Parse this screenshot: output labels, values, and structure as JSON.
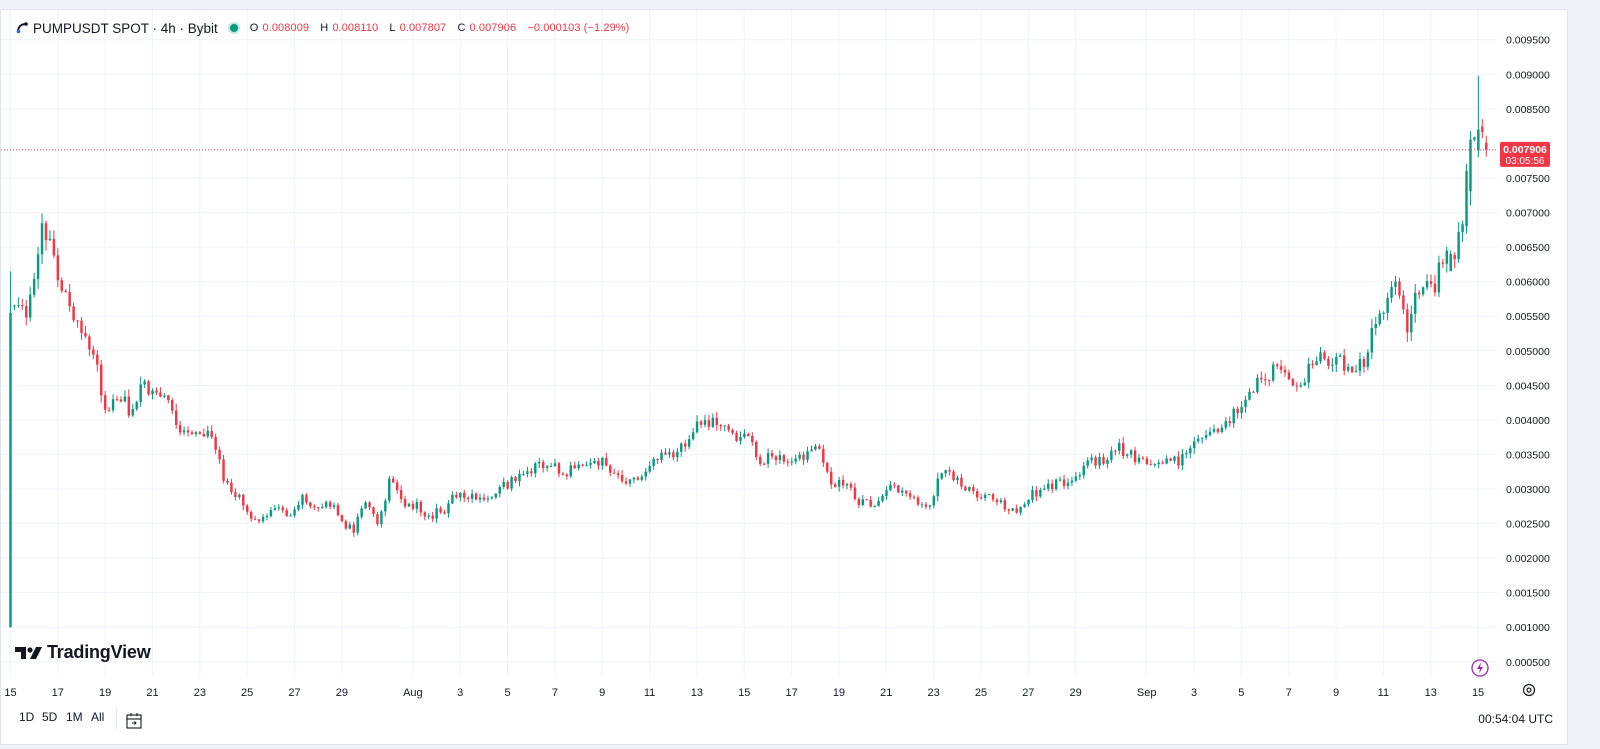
{
  "header": {
    "symbol_line": "PUMPUSDT SPOT · 4h · Bybit",
    "ohlc": {
      "o_label": "O",
      "o_value": "0.008009",
      "h_label": "H",
      "h_value": "0.008110",
      "l_label": "L",
      "l_value": "0.007807",
      "c_label": "C",
      "c_value": "0.007906",
      "change": "−0.000103 (−1.29%)"
    },
    "icons": [
      "exchange-logo-icon",
      "market-open-dot-icon"
    ]
  },
  "branding": {
    "wordmark": "TradingView",
    "icon": "tradingview-logo-icon"
  },
  "bottom_bar": {
    "ranges": [
      "1D",
      "5D",
      "1M",
      "All"
    ],
    "date_range_icon": "calendar-range-icon",
    "clock": "00:54:04 UTC"
  },
  "colors": {
    "up": "#089981",
    "down": "#f23645",
    "grid": "#f0f3fa",
    "text": "#131722",
    "price_line": "#f23645",
    "flash_icon": "#9c27b0"
  },
  "chart_data": {
    "type": "candlestick",
    "symbol": "PUMPUSDT",
    "interval": "4h",
    "exchange": "Bybit",
    "y_axis": {
      "side": "right",
      "ylim": [
        0.00028,
        0.00993
      ],
      "tick_labels": [
        "0.000500",
        "0.001000",
        "0.001500",
        "0.002000",
        "0.002500",
        "0.003000",
        "0.003500",
        "0.004000",
        "0.004500",
        "0.005000",
        "0.005500",
        "0.006000",
        "0.006500",
        "0.007000",
        "0.007500",
        "0.008500",
        "0.009000",
        "0.009500"
      ],
      "tick_values": [
        0.0005,
        0.001,
        0.0015,
        0.002,
        0.0025,
        0.003,
        0.0035,
        0.004,
        0.0045,
        0.005,
        0.0055,
        0.006,
        0.0065,
        0.007,
        0.0075,
        0.0085,
        0.009,
        0.0095
      ]
    },
    "x_axis": {
      "tick_labels": [
        "15",
        "17",
        "19",
        "21",
        "23",
        "25",
        "27",
        "29",
        "Aug",
        "3",
        "5",
        "7",
        "9",
        "11",
        "13",
        "15",
        "17",
        "19",
        "21",
        "23",
        "25",
        "27",
        "29",
        "Sep",
        "3",
        "5",
        "7",
        "9",
        "11",
        "13",
        "15"
      ],
      "tick_days": [
        0,
        2,
        4,
        6,
        8,
        10,
        12,
        14,
        17,
        19,
        21,
        23,
        25,
        27,
        29,
        31,
        33,
        35,
        37,
        39,
        41,
        43,
        45,
        48,
        50,
        52,
        54,
        56,
        58,
        60,
        62
      ],
      "bar_interval_days": 0.1667,
      "xlim_days": [
        -0.4,
        62.8
      ]
    },
    "grid": true,
    "price_line": {
      "value": 0.007906,
      "label": "0.007906",
      "countdown": "03:05:56"
    },
    "anchors": [
      {
        "day": 0.0,
        "price": 0.00555
      },
      {
        "day": 0.4,
        "price": 0.00575
      },
      {
        "day": 0.7,
        "price": 0.00545
      },
      {
        "day": 1.1,
        "price": 0.0064
      },
      {
        "day": 1.3,
        "price": 0.00685
      },
      {
        "day": 1.6,
        "price": 0.0066
      },
      {
        "day": 2.1,
        "price": 0.006
      },
      {
        "day": 2.6,
        "price": 0.0054
      },
      {
        "day": 3.2,
        "price": 0.0052
      },
      {
        "day": 3.7,
        "price": 0.0047
      },
      {
        "day": 4.0,
        "price": 0.0041
      },
      {
        "day": 4.5,
        "price": 0.0044
      },
      {
        "day": 5.1,
        "price": 0.0041
      },
      {
        "day": 5.6,
        "price": 0.0046
      },
      {
        "day": 6.1,
        "price": 0.0043
      },
      {
        "day": 6.6,
        "price": 0.0044
      },
      {
        "day": 7.1,
        "price": 0.0039
      },
      {
        "day": 7.6,
        "price": 0.0037
      },
      {
        "day": 8.2,
        "price": 0.0038
      },
      {
        "day": 8.6,
        "price": 0.0037
      },
      {
        "day": 9.0,
        "price": 0.0031
      },
      {
        "day": 9.6,
        "price": 0.0029
      },
      {
        "day": 10.2,
        "price": 0.0025
      },
      {
        "day": 10.8,
        "price": 0.0026
      },
      {
        "day": 11.4,
        "price": 0.0028
      },
      {
        "day": 11.8,
        "price": 0.0026
      },
      {
        "day": 12.3,
        "price": 0.0029
      },
      {
        "day": 12.9,
        "price": 0.0027
      },
      {
        "day": 13.5,
        "price": 0.0028
      },
      {
        "day": 14.0,
        "price": 0.0025
      },
      {
        "day": 14.5,
        "price": 0.0024
      },
      {
        "day": 15.0,
        "price": 0.0028
      },
      {
        "day": 15.5,
        "price": 0.0025
      },
      {
        "day": 16.1,
        "price": 0.0032
      },
      {
        "day": 16.6,
        "price": 0.0027
      },
      {
        "day": 17.1,
        "price": 0.0028
      },
      {
        "day": 17.6,
        "price": 0.0026
      },
      {
        "day": 18.3,
        "price": 0.0027
      },
      {
        "day": 18.8,
        "price": 0.0029
      },
      {
        "day": 19.6,
        "price": 0.0029
      },
      {
        "day": 20.3,
        "price": 0.0029
      },
      {
        "day": 21.1,
        "price": 0.0031
      },
      {
        "day": 22.0,
        "price": 0.0033
      },
      {
        "day": 22.8,
        "price": 0.0034
      },
      {
        "day": 23.3,
        "price": 0.0032
      },
      {
        "day": 24.0,
        "price": 0.0034
      },
      {
        "day": 24.5,
        "price": 0.0033
      },
      {
        "day": 25.0,
        "price": 0.0034
      },
      {
        "day": 25.8,
        "price": 0.0031
      },
      {
        "day": 26.5,
        "price": 0.0031
      },
      {
        "day": 27.2,
        "price": 0.0034
      },
      {
        "day": 27.9,
        "price": 0.0035
      },
      {
        "day": 28.5,
        "price": 0.0037
      },
      {
        "day": 29.0,
        "price": 0.004
      },
      {
        "day": 29.5,
        "price": 0.0039
      },
      {
        "day": 30.0,
        "price": 0.004
      },
      {
        "day": 30.6,
        "price": 0.0037
      },
      {
        "day": 31.1,
        "price": 0.0038
      },
      {
        "day": 31.6,
        "price": 0.0034
      },
      {
        "day": 32.2,
        "price": 0.0035
      },
      {
        "day": 33.0,
        "price": 0.0034
      },
      {
        "day": 33.6,
        "price": 0.0035
      },
      {
        "day": 34.1,
        "price": 0.0036
      },
      {
        "day": 34.6,
        "price": 0.0031
      },
      {
        "day": 35.3,
        "price": 0.0031
      },
      {
        "day": 35.8,
        "price": 0.0028
      },
      {
        "day": 36.6,
        "price": 0.0028
      },
      {
        "day": 37.2,
        "price": 0.0031
      },
      {
        "day": 37.8,
        "price": 0.0029
      },
      {
        "day": 38.3,
        "price": 0.0028
      },
      {
        "day": 38.8,
        "price": 0.0028
      },
      {
        "day": 39.3,
        "price": 0.0032
      },
      {
        "day": 39.9,
        "price": 0.0032
      },
      {
        "day": 40.5,
        "price": 0.003
      },
      {
        "day": 41.1,
        "price": 0.0029
      },
      {
        "day": 41.6,
        "price": 0.0029
      },
      {
        "day": 42.0,
        "price": 0.0027
      },
      {
        "day": 42.5,
        "price": 0.0027
      },
      {
        "day": 43.1,
        "price": 0.0029
      },
      {
        "day": 43.7,
        "price": 0.003
      },
      {
        "day": 44.4,
        "price": 0.0031
      },
      {
        "day": 45.0,
        "price": 0.0032
      },
      {
        "day": 45.6,
        "price": 0.0034
      },
      {
        "day": 46.2,
        "price": 0.0034
      },
      {
        "day": 46.8,
        "price": 0.0036
      },
      {
        "day": 47.3,
        "price": 0.0035
      },
      {
        "day": 47.9,
        "price": 0.0034
      },
      {
        "day": 48.5,
        "price": 0.0033
      },
      {
        "day": 48.9,
        "price": 0.0034
      },
      {
        "day": 49.3,
        "price": 0.0034
      },
      {
        "day": 49.8,
        "price": 0.0036
      },
      {
        "day": 50.5,
        "price": 0.0038
      },
      {
        "day": 51.1,
        "price": 0.0039
      },
      {
        "day": 51.7,
        "price": 0.0041
      },
      {
        "day": 52.3,
        "price": 0.0043
      },
      {
        "day": 52.8,
        "price": 0.0046
      },
      {
        "day": 53.4,
        "price": 0.0047
      },
      {
        "day": 53.9,
        "price": 0.0046
      },
      {
        "day": 54.3,
        "price": 0.0045
      },
      {
        "day": 54.8,
        "price": 0.0047
      },
      {
        "day": 55.4,
        "price": 0.0049
      },
      {
        "day": 56.0,
        "price": 0.0049
      },
      {
        "day": 56.6,
        "price": 0.0047
      },
      {
        "day": 57.2,
        "price": 0.0048
      },
      {
        "day": 57.6,
        "price": 0.0055
      },
      {
        "day": 58.1,
        "price": 0.0056
      },
      {
        "day": 58.6,
        "price": 0.006
      },
      {
        "day": 59.0,
        "price": 0.0053
      },
      {
        "day": 59.6,
        "price": 0.006
      },
      {
        "day": 60.1,
        "price": 0.0059
      },
      {
        "day": 60.6,
        "price": 0.0064
      },
      {
        "day": 61.0,
        "price": 0.0063
      },
      {
        "day": 61.3,
        "price": 0.0068
      },
      {
        "day": 61.7,
        "price": 0.0081
      },
      {
        "day": 62.0,
        "price": 0.0082
      },
      {
        "day": 62.25,
        "price": 0.008009
      },
      {
        "day": 62.45,
        "price": 0.007906
      }
    ],
    "features": [
      {
        "day": 0.0,
        "open": 0.001,
        "high": 0.00615,
        "low": 0.001,
        "close": 0.00555
      },
      {
        "day": 60.9,
        "open": 0.00615,
        "high": 0.00645,
        "low": 0.0062,
        "close": 0.0064
      },
      {
        "day": 61.5,
        "open": 0.0068,
        "high": 0.0077,
        "low": 0.0067,
        "close": 0.0076
      },
      {
        "day": 61.95,
        "open": 0.0079,
        "high": 0.00898,
        "low": 0.0078,
        "close": 0.0082
      },
      {
        "day": 62.45,
        "open": 0.008009,
        "high": 0.00811,
        "low": 0.007807,
        "close": 0.007906
      }
    ],
    "notes": "Candles are drawn every bar_interval_days along the piecewise-linear path through the anchor prices; feature candles read from the chart override the generated ones."
  }
}
